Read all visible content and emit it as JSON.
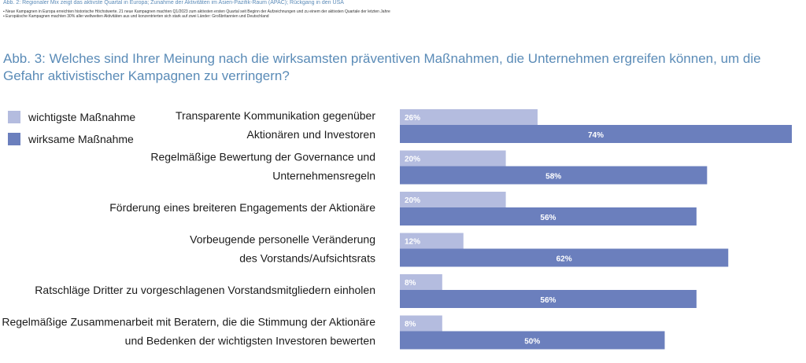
{
  "prev_figure": {
    "title": "Abb. 2: Regionaler Mix zeigt das aktivste Quartal in Europa; Zunahme der Aktivitäten im Asien-Pazifik-Raum (APAC); Rückgang in den USA",
    "bullets": [
      "Neue Kampagnen in Europa erreichten historische Höchstwerte. 21 neue Kampagnen machten Q1/2023 zum aktivsten ersten Quartal seit Beginn der Aufzeichnungen und zu einem der aktivsten Quartale der letzten Jahre",
      "Europäische Kampagnen machten 30% aller weltweiten Aktivitäten aus und konzentrierten sich stark auf zwei Länder: Großbritannien und Deutschland"
    ]
  },
  "chart_data": {
    "type": "bar",
    "orientation": "horizontal",
    "title": "Abb. 3: Welches sind Ihrer Meinung nach die wirksamsten präventiven Maßnahmen, die Unternehmen ergreifen können, um die Gefahr aktivistischer Kampagnen zu verringern?",
    "categories": [
      [
        "Transparente Kommunikation gegenüber",
        "Aktionären und Investoren"
      ],
      [
        "Regelmäßige Bewertung der Governance und",
        "Unternehmensregeln"
      ],
      [
        "Förderung eines breiteren Engagements der Aktionäre"
      ],
      [
        "Vorbeugende personelle Veränderung",
        "des Vorstands/Aufsichtsrats"
      ],
      [
        "Ratschläge Dritter zu vorgeschlagenen Vorstandsmitgliedern einholen"
      ],
      [
        "Regelmäßige Zusammenarbeit mit Beratern, die die Stimmung der Aktionäre",
        "und Bedenken der wichtigsten Investoren bewerten"
      ]
    ],
    "series": [
      {
        "name": "wichtigste Maßnahme",
        "color": "#b4bcdf",
        "values": [
          26,
          20,
          20,
          12,
          8,
          8
        ]
      },
      {
        "name": "wirksame Maßnahme",
        "color": "#6b7fbd",
        "values": [
          74,
          58,
          56,
          62,
          56,
          50
        ]
      }
    ],
    "data_labels": [
      [
        "26%",
        "20%",
        "20%",
        "12%",
        "8%",
        "8%"
      ],
      [
        "74%",
        "58%",
        "56%",
        "62%",
        "56%",
        "50%"
      ]
    ],
    "xlim": [
      0,
      74
    ],
    "legend": "top-left",
    "grid": false
  }
}
